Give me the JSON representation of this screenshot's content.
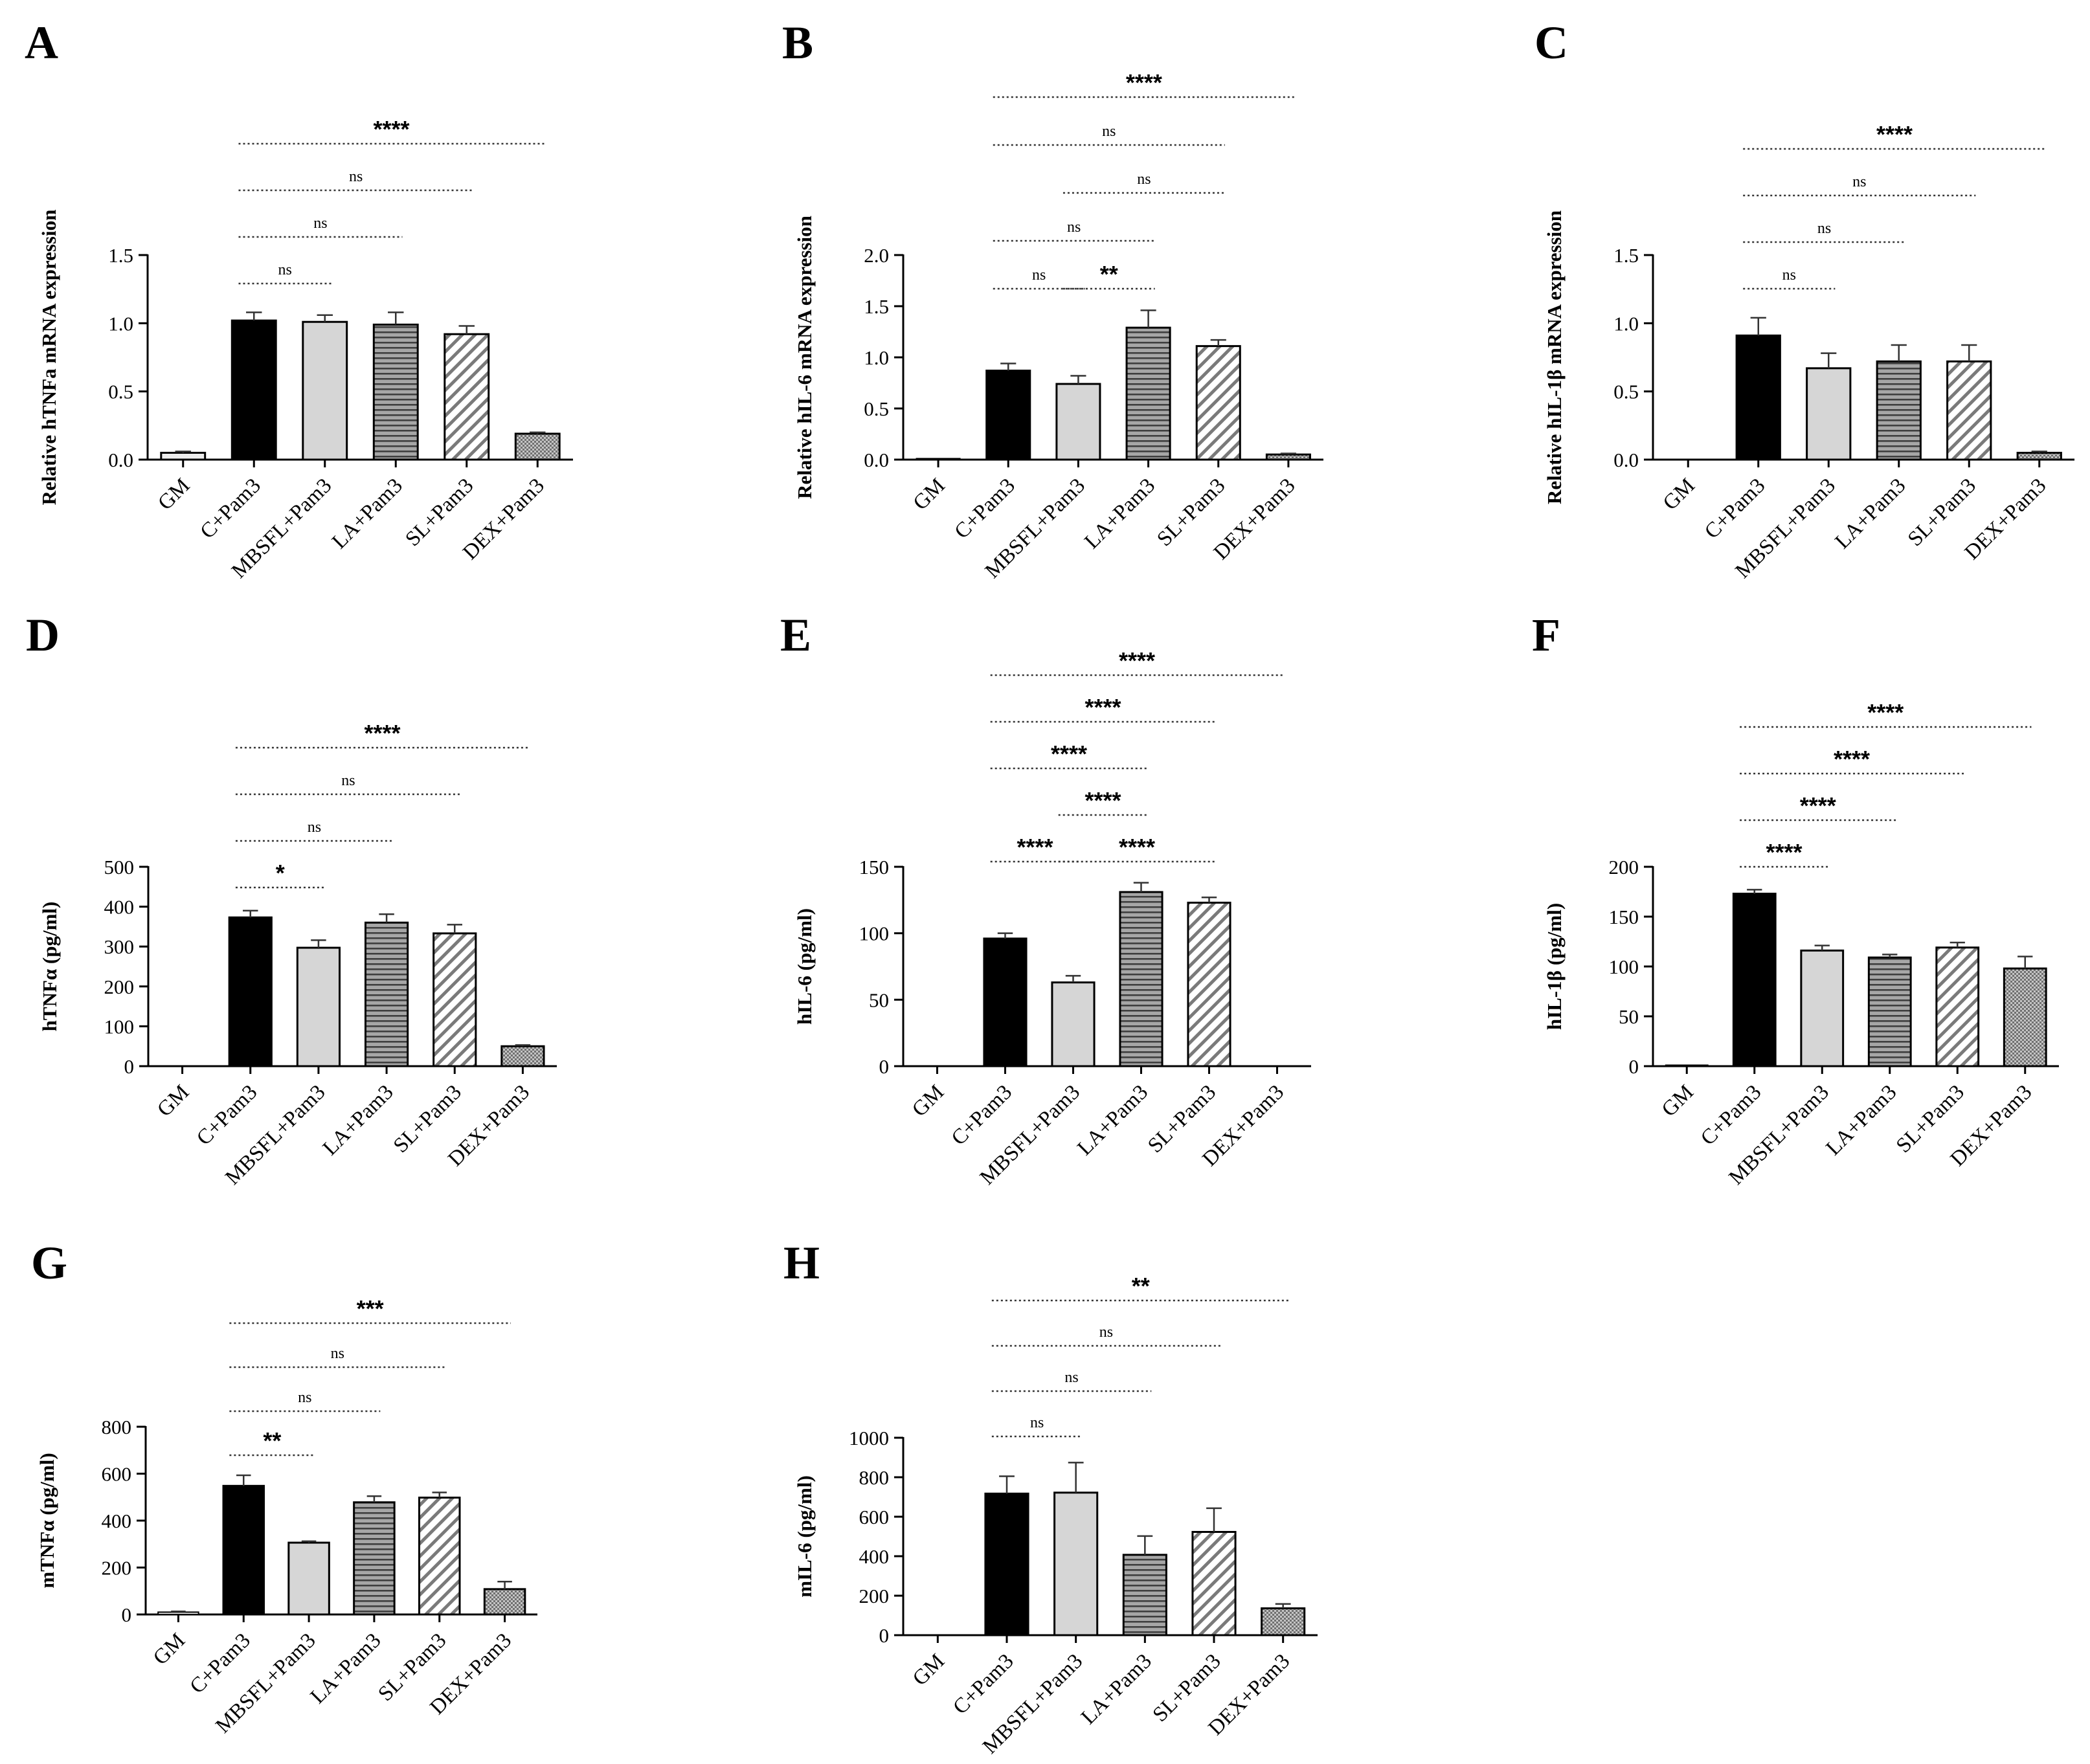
{
  "figure_title": "",
  "chart_data": [
    {
      "panel": "A",
      "type": "bar",
      "ylabel": "Relative hTNFa mRNA expression",
      "ylim": [
        0,
        1.5
      ],
      "yticks": [
        "0.0",
        "0.5",
        "1.0",
        "1.5"
      ],
      "ytick_values": [
        0,
        0.5,
        1.0,
        1.5
      ],
      "categories": [
        "GM",
        "C+Pam3",
        "MBSFL+Pam3",
        "LA+Pam3",
        "SL+Pam3",
        "DEX+Pam3"
      ],
      "values": [
        0.05,
        1.02,
        1.01,
        0.99,
        0.92,
        0.19
      ],
      "errors": [
        0.01,
        0.06,
        0.05,
        0.09,
        0.06,
        0.01
      ],
      "comparisons": [
        {
          "from": 1,
          "to": 2,
          "label": "ns"
        },
        {
          "from": 1,
          "to": 3,
          "label": "ns"
        },
        {
          "from": 1,
          "to": 4,
          "label": "ns"
        },
        {
          "from": 1,
          "to": 5,
          "label": "****"
        }
      ]
    },
    {
      "panel": "B",
      "type": "bar",
      "ylabel": "Relative hIL-6 mRNA expression",
      "ylim": [
        0,
        2.0
      ],
      "yticks": [
        "0.0",
        "0.5",
        "1.0",
        "1.5",
        "2.0"
      ],
      "ytick_values": [
        0,
        0.5,
        1.0,
        1.5,
        2.0
      ],
      "categories": [
        "GM",
        "C+Pam3",
        "MBSFL+Pam3",
        "LA+Pam3",
        "SL+Pam3",
        "DEX+Pam3"
      ],
      "values": [
        0.01,
        0.87,
        0.74,
        1.29,
        1.11,
        0.05
      ],
      "errors": [
        0.0,
        0.07,
        0.08,
        0.17,
        0.06,
        0.01
      ],
      "comparisons": [
        {
          "from": 1,
          "to": 2,
          "label": "ns"
        },
        {
          "from": 2,
          "to": 3,
          "label": "**"
        },
        {
          "from": 1,
          "to": 3,
          "label": "ns"
        },
        {
          "from": 2,
          "to": 4,
          "label": "ns"
        },
        {
          "from": 1,
          "to": 4,
          "label": "ns"
        },
        {
          "from": 1,
          "to": 5,
          "label": "****"
        }
      ]
    },
    {
      "panel": "C",
      "type": "bar",
      "ylabel": "Relative hIL-1β mRNA expression",
      "ylim": [
        0,
        1.5
      ],
      "yticks": [
        "0.0",
        "0.5",
        "1.0",
        "1.5"
      ],
      "ytick_values": [
        0,
        0.5,
        1.0,
        1.5
      ],
      "categories": [
        "GM",
        "C+Pam3",
        "MBSFL+Pam3",
        "LA+Pam3",
        "SL+Pam3",
        "DEX+Pam3"
      ],
      "values": [
        0.0,
        0.91,
        0.67,
        0.72,
        0.72,
        0.05
      ],
      "errors": [
        0.0,
        0.13,
        0.11,
        0.12,
        0.12,
        0.01
      ],
      "comparisons": [
        {
          "from": 1,
          "to": 2,
          "label": "ns"
        },
        {
          "from": 1,
          "to": 3,
          "label": "ns"
        },
        {
          "from": 1,
          "to": 4,
          "label": "ns"
        },
        {
          "from": 1,
          "to": 5,
          "label": "****"
        }
      ]
    },
    {
      "panel": "D",
      "type": "bar",
      "ylabel": "hTNFα (pg/ml)",
      "ylim": [
        0,
        500
      ],
      "yticks": [
        "0",
        "100",
        "200",
        "300",
        "400",
        "500"
      ],
      "ytick_values": [
        0,
        100,
        200,
        300,
        400,
        500
      ],
      "categories": [
        "GM",
        "C+Pam3",
        "MBSFL+Pam3",
        "LA+Pam3",
        "SL+Pam3",
        "DEX+Pam3"
      ],
      "values": [
        0,
        373,
        297,
        360,
        333,
        50
      ],
      "errors": [
        0,
        17,
        19,
        21,
        22,
        3
      ],
      "comparisons": [
        {
          "from": 1,
          "to": 2,
          "label": "*"
        },
        {
          "from": 1,
          "to": 3,
          "label": "ns"
        },
        {
          "from": 1,
          "to": 4,
          "label": "ns"
        },
        {
          "from": 1,
          "to": 5,
          "label": "****"
        }
      ]
    },
    {
      "panel": "E",
      "type": "bar",
      "ylabel": "hIL-6 (pg/ml)",
      "ylim": [
        0,
        150
      ],
      "yticks": [
        "0",
        "50",
        "100",
        "150"
      ],
      "ytick_values": [
        0,
        50,
        100,
        150
      ],
      "categories": [
        "GM",
        "C+Pam3",
        "MBSFL+Pam3",
        "LA+Pam3",
        "SL+Pam3",
        "DEX+Pam3"
      ],
      "values": [
        0,
        96,
        63,
        131,
        123,
        0
      ],
      "errors": [
        0,
        4,
        5,
        7,
        4,
        0
      ],
      "comparisons": [
        {
          "from": 1,
          "to": 2,
          "label": "****"
        },
        {
          "from": 2,
          "to": 4,
          "label": "****"
        },
        {
          "from": 2,
          "to": 3,
          "label": "****"
        },
        {
          "from": 1,
          "to": 3,
          "label": "****"
        },
        {
          "from": 1,
          "to": 4,
          "label": "****"
        },
        {
          "from": 1,
          "to": 5,
          "label": "****"
        }
      ]
    },
    {
      "panel": "F",
      "type": "bar",
      "ylabel": "hIL-1β (pg/ml)",
      "ylim": [
        0,
        200
      ],
      "yticks": [
        "0",
        "50",
        "100",
        "150",
        "200"
      ],
      "ytick_values": [
        0,
        50,
        100,
        150,
        200
      ],
      "categories": [
        "GM",
        "C+Pam3",
        "MBSFL+Pam3",
        "LA+Pam3",
        "SL+Pam3",
        "DEX+Pam3"
      ],
      "values": [
        1,
        173,
        116,
        109,
        119,
        98
      ],
      "errors": [
        0,
        4,
        5,
        3,
        5,
        12
      ],
      "comparisons": [
        {
          "from": 1,
          "to": 2,
          "label": "****"
        },
        {
          "from": 1,
          "to": 3,
          "label": "****"
        },
        {
          "from": 1,
          "to": 4,
          "label": "****"
        },
        {
          "from": 1,
          "to": 5,
          "label": "****"
        }
      ]
    },
    {
      "panel": "G",
      "type": "bar",
      "ylabel": "mTNFα (pg/ml)",
      "ylim": [
        0,
        800
      ],
      "yticks": [
        "0",
        "200",
        "400",
        "600",
        "800"
      ],
      "ytick_values": [
        0,
        200,
        400,
        600,
        800
      ],
      "categories": [
        "GM",
        "C+Pam3",
        "MBSFL+Pam3",
        "LA+Pam3",
        "SL+Pam3",
        "DEX+Pam3"
      ],
      "values": [
        10,
        548,
        306,
        478,
        498,
        108
      ],
      "errors": [
        3,
        45,
        6,
        26,
        22,
        32
      ],
      "comparisons": [
        {
          "from": 1,
          "to": 2,
          "label": "**"
        },
        {
          "from": 1,
          "to": 3,
          "label": "ns"
        },
        {
          "from": 1,
          "to": 4,
          "label": "ns"
        },
        {
          "from": 1,
          "to": 5,
          "label": "***"
        }
      ]
    },
    {
      "panel": "H",
      "type": "bar",
      "ylabel": "mIL-6 (pg/ml)",
      "ylim": [
        0,
        1000
      ],
      "yticks": [
        "0",
        "200",
        "400",
        "600",
        "800",
        "1000"
      ],
      "ytick_values": [
        0,
        200,
        400,
        600,
        800,
        1000
      ],
      "categories": [
        "GM",
        "C+Pam3",
        "MBSFL+Pam3",
        "LA+Pam3",
        "SL+Pam3",
        "DEX+Pam3"
      ],
      "values": [
        0,
        717,
        722,
        407,
        523,
        136
      ],
      "errors": [
        0,
        88,
        152,
        95,
        120,
        22
      ],
      "comparisons": [
        {
          "from": 1,
          "to": 2,
          "label": "ns"
        },
        {
          "from": 1,
          "to": 3,
          "label": "ns"
        },
        {
          "from": 1,
          "to": 4,
          "label": "ns"
        },
        {
          "from": 1,
          "to": 5,
          "label": "**"
        }
      ]
    }
  ]
}
